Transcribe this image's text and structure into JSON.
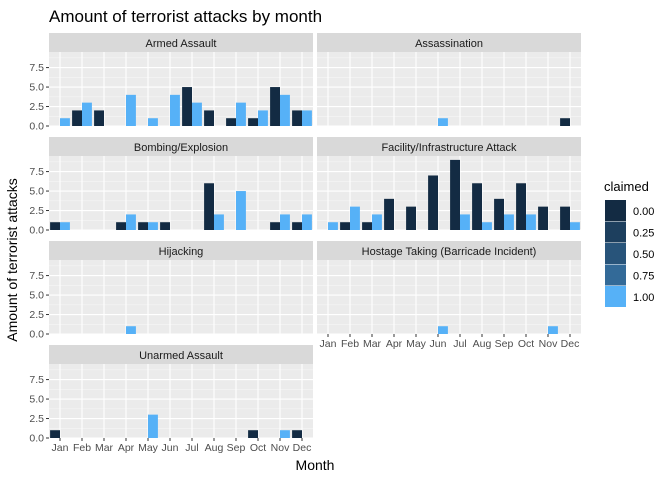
{
  "chart_data": {
    "type": "bar",
    "title": "Amount of terrorist attacks by month",
    "xlabel": "Month",
    "ylabel": "Amount of terrorist attacks",
    "categories": [
      "Jan",
      "Feb",
      "Mar",
      "Apr",
      "May",
      "Jun",
      "Jul",
      "Aug",
      "Sep",
      "Oct",
      "Nov",
      "Dec"
    ],
    "ylim": [
      0,
      9.5
    ],
    "y_ticks": [
      "0.0",
      "2.5",
      "5.0",
      "7.5"
    ],
    "y_tick_values": [
      0,
      2.5,
      5,
      7.5
    ],
    "legend": {
      "title": "claimed",
      "placement": "right",
      "entries": [
        {
          "label": "0.00",
          "color": "#132B43"
        },
        {
          "label": "0.25",
          "color": "#1D3F5E"
        },
        {
          "label": "0.50",
          "color": "#28547A"
        },
        {
          "label": "0.75",
          "color": "#336A98"
        },
        {
          "label": "1.00",
          "color": "#56B1F7"
        }
      ]
    },
    "colors": {
      "unclaimed": "#132B43",
      "claimed": "#56B1F7"
    },
    "panels": [
      {
        "name": "Armed Assault",
        "series": [
          {
            "claimed": 0,
            "values": [
              0,
              2,
              2,
              0,
              0,
              0,
              5,
              2,
              1,
              1,
              5,
              2
            ]
          },
          {
            "claimed": 1,
            "values": [
              1,
              3,
              0,
              4,
              1,
              4,
              3,
              0,
              3,
              2,
              4,
              2
            ]
          }
        ]
      },
      {
        "name": "Assassination",
        "series": [
          {
            "claimed": 0,
            "values": [
              0,
              0,
              0,
              0,
              0,
              0,
              0,
              0,
              0,
              0,
              0,
              1
            ]
          },
          {
            "claimed": 1,
            "values": [
              0,
              0,
              0,
              0,
              0,
              1,
              0,
              0,
              0,
              0,
              0,
              0
            ]
          }
        ]
      },
      {
        "name": "Bombing/Explosion",
        "series": [
          {
            "claimed": 0,
            "values": [
              1,
              0,
              0,
              1,
              1,
              1,
              0,
              6,
              0,
              0,
              1,
              1
            ]
          },
          {
            "claimed": 1,
            "values": [
              1,
              0,
              0,
              2,
              1,
              0,
              0,
              2,
              5,
              0,
              2,
              2
            ]
          }
        ]
      },
      {
        "name": "Facility/Infrastructure Attack",
        "series": [
          {
            "claimed": 0,
            "values": [
              0,
              1,
              1,
              4,
              3,
              7,
              9,
              6,
              4,
              6,
              3,
              3
            ]
          },
          {
            "claimed": 1,
            "values": [
              1,
              3,
              2,
              0,
              0,
              0,
              2,
              1,
              2,
              2,
              0,
              1
            ]
          }
        ]
      },
      {
        "name": "Hijacking",
        "series": [
          {
            "claimed": 0,
            "values": [
              0,
              0,
              0,
              0,
              0,
              0,
              0,
              0,
              0,
              0,
              0,
              0
            ]
          },
          {
            "claimed": 1,
            "values": [
              0,
              0,
              0,
              1,
              0,
              0,
              0,
              0,
              0,
              0,
              0,
              0
            ]
          }
        ]
      },
      {
        "name": "Hostage Taking (Barricade Incident)",
        "series": [
          {
            "claimed": 0,
            "values": [
              0,
              0,
              0,
              0,
              0,
              0,
              0,
              0,
              0,
              0,
              0,
              0
            ]
          },
          {
            "claimed": 1,
            "values": [
              0,
              0,
              0,
              0,
              0,
              1,
              0,
              0,
              0,
              0,
              1,
              0
            ]
          }
        ]
      },
      {
        "name": "Unarmed Assault",
        "series": [
          {
            "claimed": 0,
            "values": [
              1,
              0,
              0,
              0,
              0,
              0,
              0,
              0,
              0,
              1,
              0,
              1
            ]
          },
          {
            "claimed": 1,
            "values": [
              0,
              0,
              0,
              0,
              3,
              0,
              0,
              0,
              0,
              0,
              1,
              0
            ]
          }
        ]
      }
    ]
  }
}
